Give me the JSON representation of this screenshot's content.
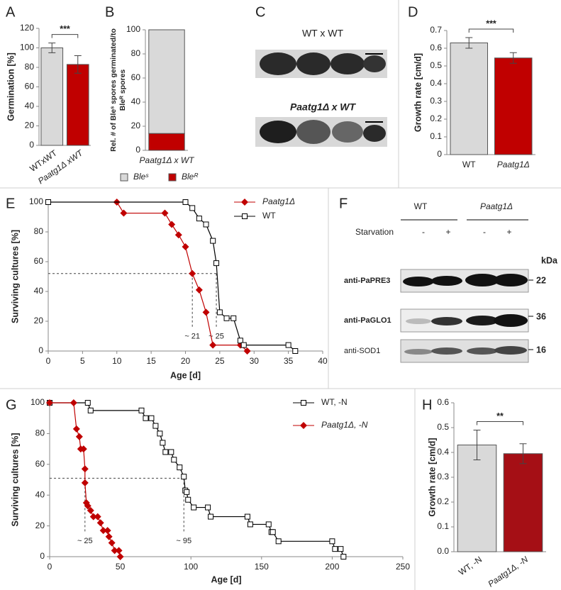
{
  "chart_data": [
    {
      "panel": "A",
      "type": "bar",
      "ylabel": "Germination [%]",
      "categories": [
        "WTxWT",
        "Paatg1Δ xWT"
      ],
      "values": [
        100,
        83
      ],
      "errors": [
        5,
        9
      ],
      "colors": [
        "#d9d9d9",
        "#c00000"
      ],
      "ylim": [
        0,
        120
      ],
      "yticks": [
        0,
        20,
        40,
        60,
        80,
        100,
        120
      ],
      "significance": "***"
    },
    {
      "panel": "B",
      "type": "stacked_bar",
      "ylabel": [
        "Rel. # of Bleˢ spores germinated/to",
        "Bleᴿ spores"
      ],
      "categories": [
        "Paatg1Δ x WT"
      ],
      "series": [
        {
          "name": "Bleˢ",
          "color": "#d9d9d9",
          "values": [
            86
          ]
        },
        {
          "name": "Bleᴿ",
          "color": "#c00000",
          "values": [
            14
          ]
        }
      ],
      "ylim": [
        0,
        100
      ],
      "yticks": [
        0,
        20,
        40,
        60,
        80,
        100
      ],
      "legend": "lower center"
    },
    {
      "panel": "D",
      "type": "bar",
      "ylabel": "Growth rate [cm/d]",
      "categories": [
        "WT",
        "Paatg1Δ"
      ],
      "values": [
        0.63,
        0.545
      ],
      "errors": [
        0.03,
        0.03
      ],
      "colors": [
        "#d9d9d9",
        "#c00000"
      ],
      "ylim": [
        0,
        0.7
      ],
      "yticks": [
        0,
        0.1,
        0.2,
        0.3,
        0.4,
        0.5,
        0.6,
        0.7
      ],
      "significance": "***"
    },
    {
      "panel": "E",
      "type": "line",
      "ylabel": "Surviving cultures [%]",
      "xlabel": "Age [d]",
      "xlim": [
        0,
        40
      ],
      "xticks": [
        0,
        5,
        10,
        15,
        20,
        25,
        30,
        35,
        40
      ],
      "ylim": [
        0,
        100
      ],
      "yticks": [
        0,
        20,
        40,
        60,
        80,
        100
      ],
      "legend": "upper right",
      "series": [
        {
          "name": "Paatg1Δ",
          "color": "#c00000",
          "marker": "diamond",
          "x": [
            10,
            11,
            17,
            18,
            19,
            20,
            21,
            22,
            23,
            24,
            28,
            29
          ],
          "values": [
            100,
            92.6,
            92.6,
            85,
            78,
            70,
            52,
            41,
            26,
            4,
            4,
            0
          ]
        },
        {
          "name": "WT",
          "color": "#000000",
          "marker": "square",
          "x": [
            0,
            20,
            21,
            22,
            23,
            24,
            24.5,
            25,
            26,
            27,
            28,
            28.5,
            35,
            36
          ],
          "values": [
            100,
            100,
            96,
            89,
            85,
            74,
            59,
            26,
            22,
            22,
            7,
            4,
            4,
            0
          ]
        }
      ],
      "reference": {
        "y": 52,
        "x": [
          21,
          24.5
        ]
      },
      "annotations": [
        "~ 21",
        "~ 25"
      ]
    },
    {
      "panel": "G",
      "type": "line",
      "ylabel": "Surviving cultures [%]",
      "xlabel": "Age [d]",
      "xlim": [
        0,
        250
      ],
      "xticks": [
        0,
        50,
        100,
        150,
        200,
        250
      ],
      "ylim": [
        0,
        100
      ],
      "yticks": [
        0,
        20,
        40,
        60,
        80,
        100
      ],
      "legend": "upper right",
      "series": [
        {
          "name": "WT, -N",
          "color": "#000000",
          "marker": "square",
          "x": [
            0,
            27,
            29,
            65,
            68,
            72,
            75,
            78,
            80,
            82,
            86,
            88,
            92,
            95,
            96,
            97,
            98,
            102,
            112,
            114,
            140,
            142,
            155,
            157,
            158,
            162,
            200,
            202,
            206,
            208
          ],
          "values": [
            100,
            100,
            95,
            95,
            90,
            90,
            85,
            80,
            74,
            68,
            68,
            63,
            58,
            52,
            43,
            42,
            37,
            32,
            32,
            26,
            26,
            21,
            21,
            16,
            16,
            10,
            10,
            5,
            5,
            0
          ]
        },
        {
          "name": "Paatg1Δ, -N",
          "color": "#c00000",
          "marker": "diamond",
          "x": [
            0,
            17,
            19,
            21,
            22,
            24,
            25,
            25,
            26,
            27,
            29,
            31,
            34,
            36,
            38,
            41,
            42,
            44,
            46,
            49,
            50
          ],
          "values": [
            100,
            100,
            83,
            78,
            70,
            70,
            57,
            48,
            35,
            33,
            30,
            26,
            26,
            22,
            17,
            17,
            13,
            9,
            4,
            4,
            0
          ]
        }
      ],
      "reference": {
        "y": 51,
        "x": [
          25,
          95
        ]
      },
      "annotations": [
        "~ 25",
        "~ 95"
      ]
    },
    {
      "panel": "H",
      "type": "bar",
      "ylabel": "Growth rate [cm/d]",
      "categories": [
        "WT, -N",
        "Paatg1Δ, -N"
      ],
      "values": [
        0.43,
        0.395
      ],
      "errors": [
        0.06,
        0.04
      ],
      "colors": [
        "#d9d9d9",
        "#a50f15"
      ],
      "ylim": [
        0,
        0.6
      ],
      "yticks": [
        {
          "value": 0,
          "label": "0.0"
        },
        0.1,
        0.2,
        0.3,
        0.4,
        0.5,
        0.6
      ],
      "significance": "**"
    }
  ],
  "image_panel": {
    "panel": "C",
    "labels": [
      "WT x WT",
      "Paatg1Δ x WT"
    ]
  },
  "blot": {
    "panel": "F",
    "groups": [
      "WT",
      "Paatg1Δ"
    ],
    "condition": "Starvation",
    "lanes": [
      "-",
      "+",
      "-",
      "+"
    ],
    "unit": "kDa",
    "rows": [
      {
        "antibody": "anti-PaPRE3",
        "size": 22
      },
      {
        "antibody": "anti-PaGLO1",
        "size": 36
      },
      {
        "antibody": "anti-SOD1",
        "size": 16
      }
    ]
  }
}
